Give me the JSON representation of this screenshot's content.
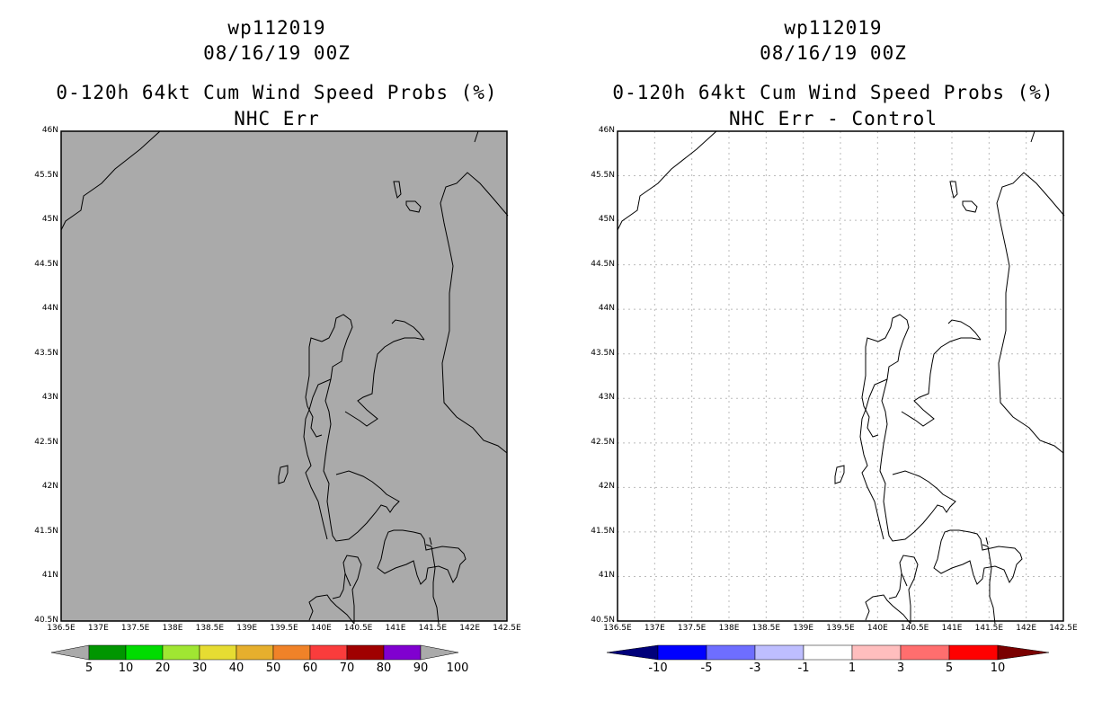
{
  "left": {
    "storm": "wp112019",
    "datetime": "08/16/19 00Z",
    "title": "0-120h 64kt Cum Wind Speed Probs (%)",
    "subtitle": "NHC Err",
    "fill_color": "#aaaaaa",
    "colorbar": {
      "colors": [
        "#009600",
        "#00dc00",
        "#a0e632",
        "#e6dc32",
        "#e6af2d",
        "#f08228",
        "#fa3c3c",
        "#a00000",
        "#8000d0"
      ],
      "end_color": "#aaaaaa",
      "labels": [
        "5",
        "10",
        "20",
        "30",
        "40",
        "50",
        "60",
        "70",
        "80",
        "90",
        "100"
      ]
    }
  },
  "right": {
    "storm": "wp112019",
    "datetime": "08/16/19 00Z",
    "title": "0-120h 64kt Cum Wind Speed Probs (%)",
    "subtitle": "NHC Err - Control",
    "fill_color": "#ffffff",
    "colorbar": {
      "colors": [
        "#0000ff",
        "#6e6eff",
        "#bebeff",
        "#ffffff",
        "#ffbebe",
        "#ff6e6e",
        "#ff0000"
      ],
      "end_left": "#00007a",
      "end_right": "#7a0000",
      "labels": [
        "-10",
        "-5",
        "-3",
        "-1",
        "1",
        "3",
        "5",
        "10"
      ]
    }
  },
  "axes": {
    "lat_labels": [
      "46N",
      "45.5N",
      "45N",
      "44.5N",
      "44N",
      "43.5N",
      "43N",
      "42.5N",
      "42N",
      "41.5N",
      "41N",
      "40.5N"
    ],
    "lon_labels": [
      "136.5E",
      "137E",
      "137.5E",
      "138E",
      "138.5E",
      "139E",
      "139.5E",
      "140E",
      "140.5E",
      "141E",
      "141.5E",
      "142E",
      "142.5E"
    ]
  }
}
